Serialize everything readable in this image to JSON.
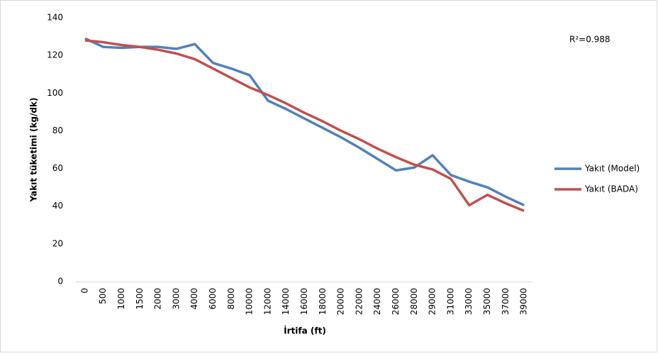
{
  "chart_data": {
    "type": "line",
    "x_label": "İrtifa (ft)",
    "y_label": "Yakıt tüketimi (kg/dk)",
    "annotation": "R²=0.988",
    "categories": [
      "0",
      "500",
      "1000",
      "1500",
      "2000",
      "3000",
      "4000",
      "6000",
      "8000",
      "10000",
      "12000",
      "14000",
      "16000",
      "18000",
      "20000",
      "22000",
      "24000",
      "26000",
      "28000",
      "29000",
      "31000",
      "33000",
      "35000",
      "37000",
      "39000"
    ],
    "series": [
      {
        "name": "Yakıt (Model)",
        "color": "#4f81bd",
        "values": [
          129,
          124.5,
          124,
          124.5,
          124.5,
          123.5,
          126,
          116,
          113,
          109.5,
          96,
          91.5,
          86.5,
          81.5,
          76.5,
          71,
          65,
          59,
          60.5,
          67,
          56.5,
          53,
          50,
          45,
          40.5
        ]
      },
      {
        "name": "Yakıt (BADA)",
        "color": "#c0504d",
        "values": [
          128,
          127,
          125.5,
          124.5,
          123,
          121,
          118,
          113,
          108,
          103,
          99,
          94.5,
          89.5,
          85,
          80,
          75.5,
          70.5,
          66,
          62,
          59.5,
          54.5,
          40.5,
          46,
          41.5,
          37.5
        ]
      }
    ],
    "ylim": [
      0,
      140
    ],
    "yticks": [
      0,
      20,
      40,
      60,
      80,
      100,
      120,
      140
    ],
    "legend": "right"
  }
}
